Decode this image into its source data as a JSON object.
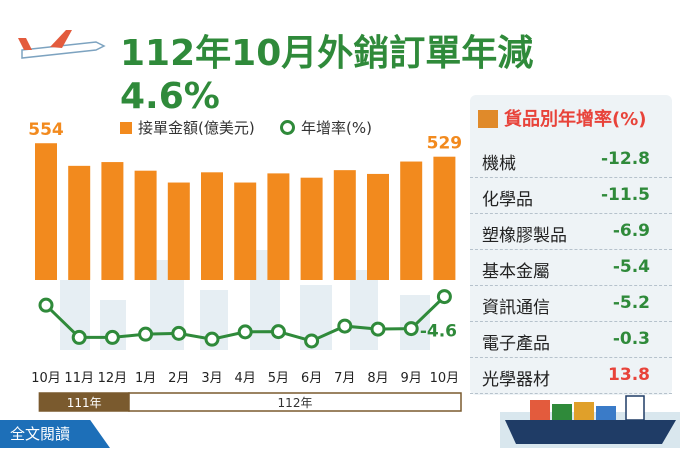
{
  "title": "112年10月外銷訂單年減4.6%",
  "legend": {
    "bar_label": "接單金額(億美元)",
    "line_label": "年增率(%)"
  },
  "chart_data": {
    "type": "bar",
    "categories": [
      "10月",
      "11月",
      "12月",
      "1月",
      "2月",
      "3月",
      "4月",
      "5月",
      "6月",
      "7月",
      "8月",
      "9月",
      "10月"
    ],
    "series": [
      {
        "name": "接單金額(億美元)",
        "values": [
          554,
          512,
          519,
          503,
          481,
          500,
          481,
          498,
          490,
          504,
          497,
          520,
          529
        ]
      },
      {
        "name": "年增率(%)",
        "values": [
          -8.0,
          -20.8,
          -20.8,
          -19.5,
          -19.2,
          -21.5,
          -18.6,
          -18.5,
          -22.2,
          -16.3,
          -17.5,
          -17.3,
          -4.6
        ]
      }
    ],
    "bar_labels": {
      "first": "554",
      "last": "529"
    },
    "line_label_last": "-4.6",
    "year_groups": [
      {
        "label": "111年",
        "span": 3
      },
      {
        "label": "112年",
        "span": 10
      }
    ]
  },
  "sidebar": {
    "title": "貨品別年增率(%)",
    "items": [
      {
        "name": "機械",
        "value": "-12.8"
      },
      {
        "name": "化學品",
        "value": "-11.5"
      },
      {
        "name": "塑橡膠製品",
        "value": "-6.9"
      },
      {
        "name": "基本金屬",
        "value": "-5.4"
      },
      {
        "name": "資訊通信",
        "value": "-5.2"
      },
      {
        "name": "電子產品",
        "value": "-0.3"
      },
      {
        "name": "光學器材",
        "value": "13.8"
      }
    ]
  },
  "read_all": "全文閱讀",
  "colors": {
    "bar": "#f28a1e",
    "line": "#2f8a3a",
    "title": "#2f8a3a",
    "accent": "#e8433a",
    "button": "#1d6fb8"
  }
}
